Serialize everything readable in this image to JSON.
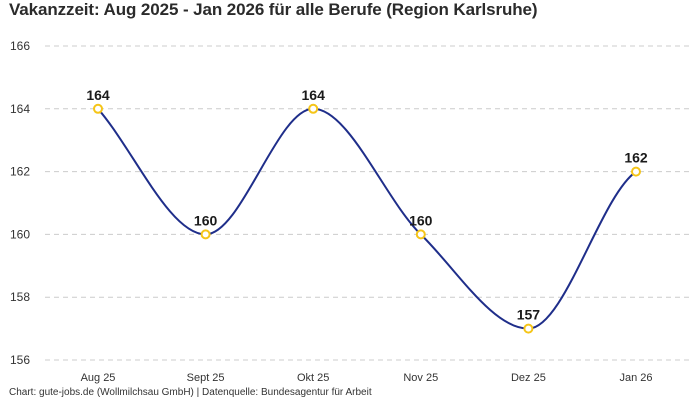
{
  "title": "Vakanzzeit: Aug 2025 - Jan 2026 für alle Berufe (Region Karlsruhe)",
  "footer": "Chart: gute-jobs.de (Wollmilchsau GmbH) | Datenquelle: Bundesagentur für Arbeit",
  "colors": {
    "line": "#1f2e8a",
    "marker": "#f5c518",
    "grid": "#cccccc"
  },
  "chart_data": {
    "type": "line",
    "title": "Vakanzzeit: Aug 2025 - Jan 2026 für alle Berufe (Region Karlsruhe)",
    "xlabel": "",
    "ylabel": "",
    "categories": [
      "Aug 25",
      "Sept 25",
      "Okt 25",
      "Nov 25",
      "Dez 25",
      "Jan 26"
    ],
    "series": [
      {
        "name": "Vakanzzeit",
        "values": [
          164,
          160,
          164,
          160,
          157,
          162
        ]
      }
    ],
    "ylim": [
      156,
      166
    ],
    "yticks": [
      156,
      158,
      160,
      162,
      164,
      166
    ],
    "grid": true,
    "data_labels": true,
    "legend": null
  }
}
